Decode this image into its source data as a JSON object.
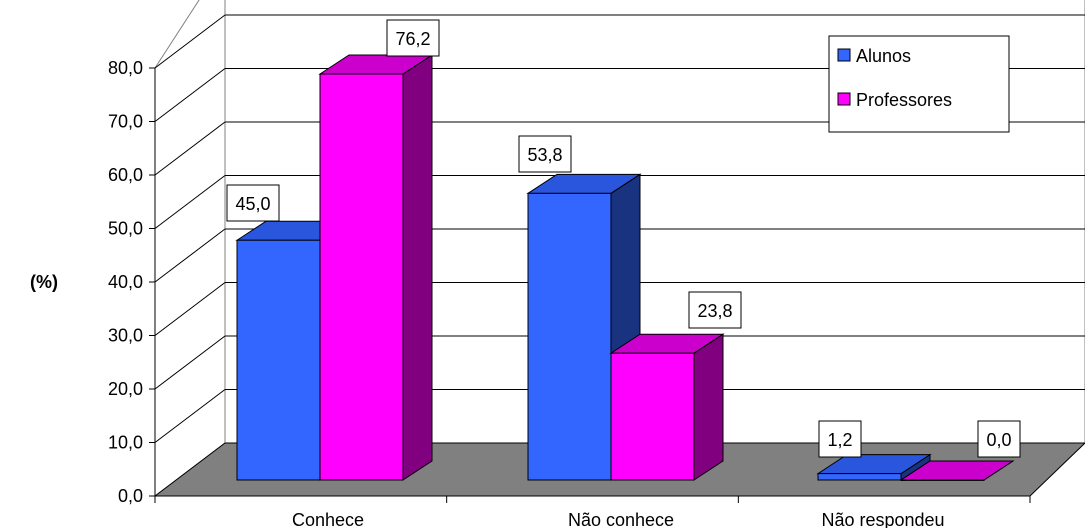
{
  "chart_data": {
    "type": "bar",
    "ylabel": "(%)",
    "ylim": [
      0,
      80
    ],
    "ytick_labels": [
      "0,0",
      "10,0",
      "20,0",
      "30,0",
      "40,0",
      "50,0",
      "60,0",
      "70,0",
      "80,0"
    ],
    "categories": [
      "Conhece",
      "Não conhece",
      "Não respondeu"
    ],
    "series": [
      {
        "name": "Alunos",
        "values": [
          45.0,
          53.8,
          1.2
        ],
        "labels": [
          "45,0",
          "53,8",
          "1,2"
        ],
        "color": "#3366ff",
        "side_color": "#1a3380",
        "top_color": "#2a55dd"
      },
      {
        "name": "Professores",
        "values": [
          76.2,
          23.8,
          0.0
        ],
        "labels": [
          "76,2",
          "23,8",
          "0,0"
        ],
        "color": "#ff00ff",
        "side_color": "#800080",
        "top_color": "#cc00cc"
      }
    ],
    "legend": {
      "position": "top-right"
    },
    "grid": true,
    "style": "3d-clustered-column"
  }
}
